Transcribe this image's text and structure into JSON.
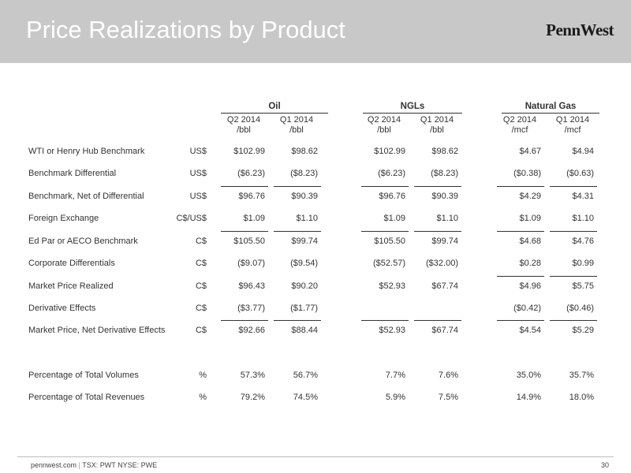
{
  "header": {
    "title": "Price Realizations by Product",
    "logo": "PennWest"
  },
  "table": {
    "groups": [
      "Oil",
      "NGLs",
      "Natural Gas"
    ],
    "periods": [
      "Q2 2014",
      "Q1 2014",
      "Q2 2014",
      "Q1 2014",
      "Q2 2014",
      "Q1 2014"
    ],
    "units": [
      "/bbl",
      "/bbl",
      "/bbl",
      "/bbl",
      "/mcf",
      "/mcf"
    ],
    "rows": [
      {
        "label": "WTI or Henry Hub Benchmark",
        "currency": "US$",
        "values": [
          "$102.99",
          "$98.62",
          "$102.99",
          "$98.62",
          "$4.67",
          "$4.94"
        ]
      },
      {
        "label": "Benchmark Differential",
        "currency": "US$",
        "values": [
          "($6.23)",
          "($8.23)",
          "($6.23)",
          "($8.23)",
          "($0.38)",
          "($0.63)"
        ]
      },
      {
        "label": "Benchmark, Net of Differential",
        "currency": "US$",
        "values": [
          "$96.76",
          "$90.39",
          "$96.76",
          "$90.39",
          "$4.29",
          "$4.31"
        ]
      },
      {
        "label": "Foreign Exchange",
        "currency": "C$/US$",
        "values": [
          "$1.09",
          "$1.10",
          "$1.09",
          "$1.10",
          "$1.09",
          "$1.10"
        ]
      },
      {
        "label": "Ed Par or AECO Benchmark",
        "currency": "C$",
        "values": [
          "$105.50",
          "$99.74",
          "$105.50",
          "$99.74",
          "$4.68",
          "$4.76"
        ]
      },
      {
        "label": "Corporate Differentials",
        "currency": "C$",
        "values": [
          "($9.07)",
          "($9.54)",
          "($52.57)",
          "($32.00)",
          "$0.28",
          "$0.99"
        ]
      },
      {
        "label": "Market Price Realized",
        "currency": "C$",
        "values": [
          "$96.43",
          "$90.20",
          "$52.93",
          "$67.74",
          "$4.96",
          "$5.75"
        ]
      },
      {
        "label": "Derivative Effects",
        "currency": "C$",
        "values": [
          "($3.77)",
          "($1.77)",
          "",
          "",
          "($0.42)",
          "($0.46)"
        ]
      },
      {
        "label": "Market Price, Net Derivative Effects",
        "currency": "C$",
        "values": [
          "$92.66",
          "$88.44",
          "$52.93",
          "$67.74",
          "$4.54",
          "$5.29"
        ]
      },
      {
        "label": "Percentage of Total Volumes",
        "currency": "%",
        "values": [
          "57.3%",
          "56.7%",
          "7.7%",
          "7.6%",
          "35.0%",
          "35.7%"
        ]
      },
      {
        "label": "Percentage of Total Revenues",
        "currency": "%",
        "values": [
          "79.2%",
          "74.5%",
          "5.9%",
          "7.5%",
          "14.9%",
          "18.0%"
        ]
      }
    ]
  },
  "footer": {
    "site": "pennwest.com",
    "separator": "|",
    "tickers": "TSX: PWT  NYSE: PWE",
    "page": "30"
  }
}
